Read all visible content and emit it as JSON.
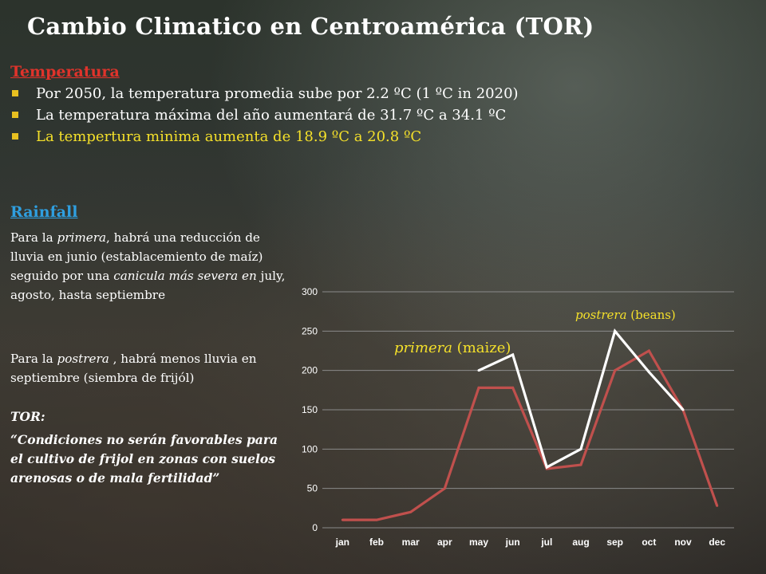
{
  "title": "Cambio Climatico en Centroamérica (TOR)",
  "temperature": {
    "heading": "Temperatura",
    "bullets": [
      "Por 2050, la temperatura promedia sube por 2.2 ºC (1 ºC in 2020)",
      "La temperatura máxima del año aumentará de 31.7 ºC a 34.1 ºC",
      "La tempertura minima aumenta de 18.9 ºC a 20.8 ºC"
    ]
  },
  "rainfall": {
    "heading": "Rainfall",
    "p1": {
      "a": "Para la ",
      "b": "primera",
      "c": ", habrá una reducción de lluvia en junio (establacemiento de maíz)  seguido por una ",
      "d": "canicula más severa en",
      "e": " july, agosto,  hasta septiembre"
    },
    "p2": {
      "a": "Para la ",
      "b": "postrera",
      "c": " , habrá menos lluvia en  septiembre (siembra de frijól)"
    },
    "tor_heading": "TOR:",
    "tor_quote": "“Condiciones no serán favorables para el cultivo de frijol en zonas con suelos arenosas o de mala fertilidad”"
  },
  "annotations": {
    "primera_italic": "primera",
    "primera_rest": " (maize)",
    "postrera_italic": "postrera",
    "postrera_rest": " (beans)"
  },
  "chart_data": {
    "type": "line",
    "categories": [
      "jan",
      "feb",
      "mar",
      "apr",
      "may",
      "jun",
      "jul",
      "aug",
      "sep",
      "oct",
      "nov",
      "dec"
    ],
    "ylim": [
      0,
      300
    ],
    "yticks": [
      0,
      50,
      100,
      150,
      200,
      250,
      300
    ],
    "grid": true,
    "series": [
      {
        "color": "#ffffff",
        "values": [
          null,
          null,
          null,
          null,
          200,
          220,
          77,
          100,
          250,
          198,
          150,
          null
        ]
      },
      {
        "color": "#c0504d",
        "values": [
          10,
          10,
          20,
          50,
          178,
          178,
          75,
          80,
          200,
          225,
          150,
          28
        ]
      }
    ],
    "colors": {
      "grid": "#8a8a8a",
      "tick_label": "#ffffff"
    }
  }
}
